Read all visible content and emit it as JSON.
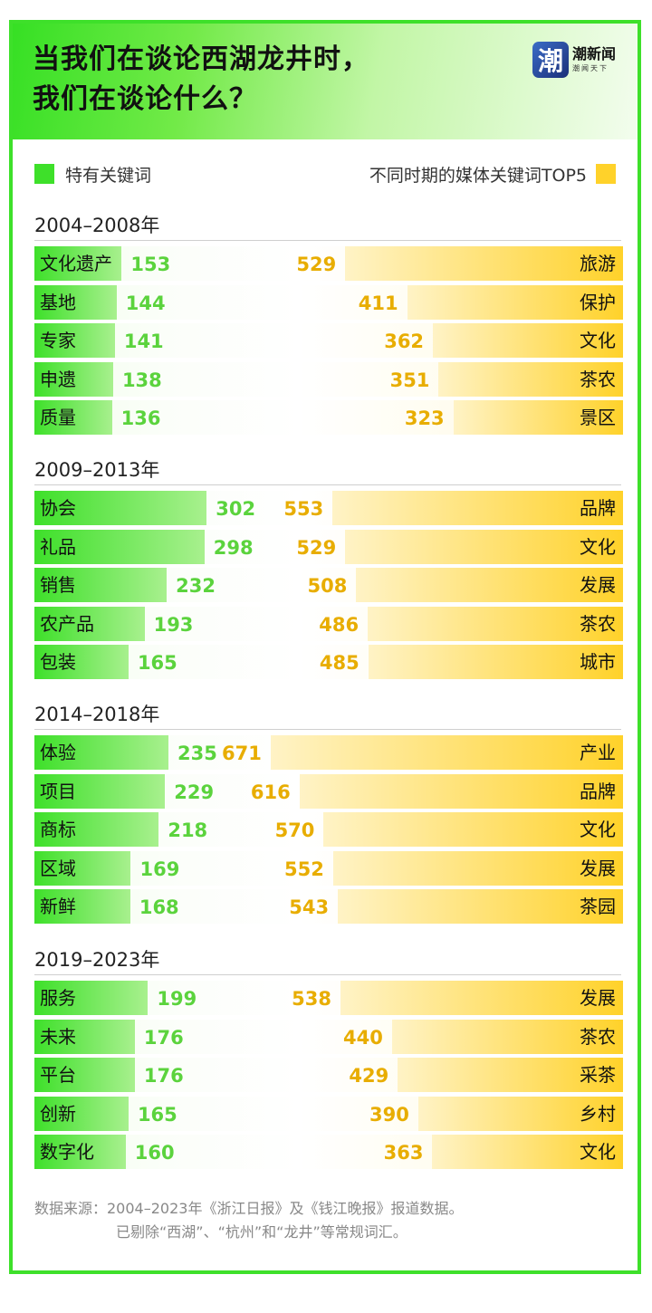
{
  "header": {
    "title_line1": "当我们在谈论西湖龙井时，",
    "title_line2": "我们在谈论什么？",
    "logo_mark": "潮",
    "logo_name": "潮新闻",
    "logo_sub": "潮闻天下"
  },
  "legend": {
    "left_label": "特有关键词",
    "right_label": "不同时期的媒体关键词TOP5",
    "left_color": "#3ee02a",
    "right_color": "#ffd22a"
  },
  "chart_data": [
    {
      "type": "bar",
      "period": "2004–2008年",
      "series": [
        {
          "name": "特有关键词",
          "categories": [
            "文化遗产",
            "基地",
            "专家",
            "申遗",
            "质量"
          ],
          "values": [
            153,
            144,
            141,
            138,
            136
          ]
        },
        {
          "name": "不同时期的媒体关键词TOP5",
          "categories": [
            "旅游",
            "保护",
            "文化",
            "茶农",
            "景区"
          ],
          "values": [
            529,
            411,
            362,
            351,
            323
          ]
        }
      ]
    },
    {
      "type": "bar",
      "period": "2009–2013年",
      "series": [
        {
          "name": "特有关键词",
          "categories": [
            "协会",
            "礼品",
            "销售",
            "农产品",
            "包装"
          ],
          "values": [
            302,
            298,
            232,
            193,
            165
          ]
        },
        {
          "name": "不同时期的媒体关键词TOP5",
          "categories": [
            "品牌",
            "文化",
            "发展",
            "茶农",
            "城市"
          ],
          "values": [
            553,
            529,
            508,
            486,
            485
          ]
        }
      ]
    },
    {
      "type": "bar",
      "period": "2014–2018年",
      "series": [
        {
          "name": "特有关键词",
          "categories": [
            "体验",
            "项目",
            "商标",
            "区域",
            "新鲜"
          ],
          "values": [
            235,
            229,
            218,
            169,
            168
          ]
        },
        {
          "name": "不同时期的媒体关键词TOP5",
          "categories": [
            "产业",
            "品牌",
            "文化",
            "发展",
            "茶园"
          ],
          "values": [
            671,
            616,
            570,
            552,
            543
          ]
        }
      ]
    },
    {
      "type": "bar",
      "period": "2019–2023年",
      "series": [
        {
          "name": "特有关键词",
          "categories": [
            "服务",
            "未来",
            "平台",
            "创新",
            "数字化"
          ],
          "values": [
            199,
            176,
            176,
            165,
            160
          ]
        },
        {
          "name": "不同时期的媒体关键词TOP5",
          "categories": [
            "发展",
            "茶农",
            "采茶",
            "乡村",
            "文化"
          ],
          "values": [
            538,
            440,
            429,
            390,
            363
          ]
        }
      ]
    }
  ],
  "footer": {
    "source_line1": "数据来源：2004–2023年《浙江日报》及《钱江晚报》报道数据。",
    "source_line2": "已剔除“西湖”、“杭州”和“龙井”等常规词汇。"
  }
}
